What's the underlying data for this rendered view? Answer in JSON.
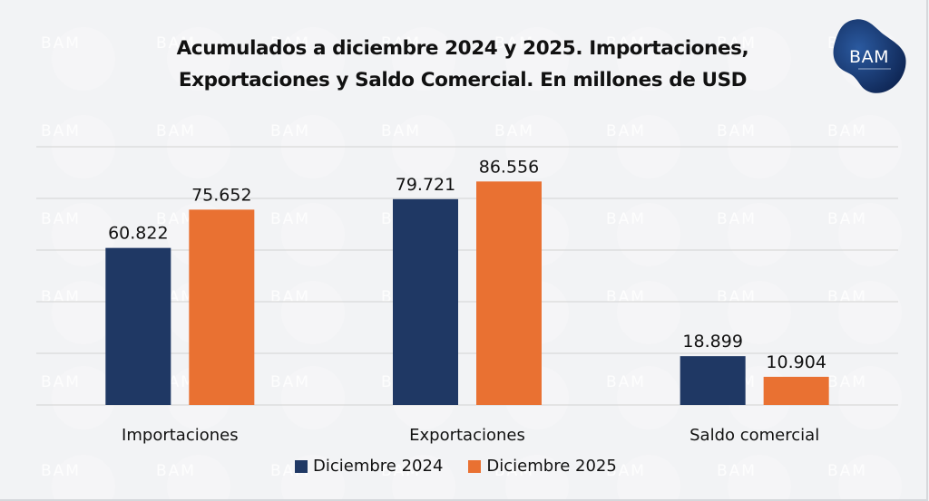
{
  "header": {
    "title_line1": "Acumulados a diciembre 2024 y 2025. Importaciones,",
    "title_line2": "Exportaciones y Saldo Comercial. En millones de USD",
    "logo_text": "BAM"
  },
  "watermark_text": "BAM",
  "colors": {
    "series_2024": "#1f3864",
    "series_2025": "#e97132",
    "gridline": "#d9d9d9",
    "logo_dark": "#0d2350",
    "logo_light": "#2b5aa0"
  },
  "chart_data": {
    "type": "bar",
    "title": "Acumulados a diciembre 2024 y 2025. Importaciones, Exportaciones y Saldo Comercial. En millones de USD",
    "xlabel": "",
    "ylabel": "",
    "categories": [
      "Importaciones",
      "Exportaciones",
      "Saldo comercial"
    ],
    "series": [
      {
        "name": "Diciembre 2024",
        "values": [
          60822,
          79721,
          18899
        ],
        "labels": [
          "60.822",
          "79.721",
          "18.899"
        ]
      },
      {
        "name": "Diciembre 2025",
        "values": [
          75652,
          86556,
          10904
        ],
        "labels": [
          "75.652",
          "86.556",
          "10.904"
        ]
      }
    ],
    "ylim": [
      0,
      100000
    ],
    "ytick_step": 20000,
    "y_axis_visible": false,
    "grid": true,
    "legend_position": "bottom",
    "data_labels": true
  }
}
